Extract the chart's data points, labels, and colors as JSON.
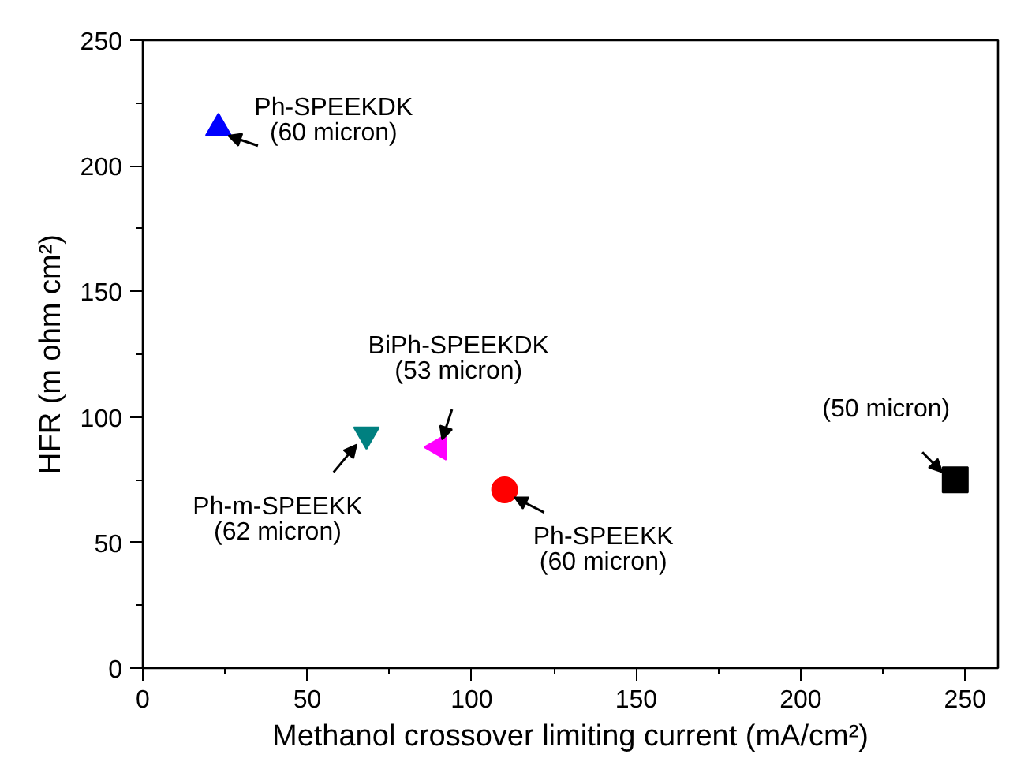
{
  "chart_data": {
    "type": "scatter",
    "xlabel": "Methanol crossover limiting current (mA/cm²)",
    "ylabel": "HFR (m ohm cm²)",
    "xlim": [
      0,
      260
    ],
    "ylim": [
      0,
      250
    ],
    "xticks": [
      0,
      50,
      100,
      150,
      200,
      250
    ],
    "yticks": [
      0,
      50,
      100,
      150,
      200,
      250
    ],
    "grid": false,
    "series": [
      {
        "color": "#0000ff",
        "marker": "triangle",
        "x": [
          23
        ],
        "values": [
          215
        ]
      },
      {
        "color": "#008080",
        "marker": "triangle-down",
        "x": [
          68
        ],
        "values": [
          93
        ]
      },
      {
        "color": "#ff00ff",
        "marker": "triangle-left",
        "x": [
          90
        ],
        "values": [
          88
        ]
      },
      {
        "color": "#ff0000",
        "marker": "circle",
        "x": [
          110
        ],
        "values": [
          71
        ]
      },
      {
        "color": "#000000",
        "marker": "square",
        "x": [
          247
        ],
        "values": [
          75
        ]
      }
    ],
    "annotations": [
      {
        "text": "Ph-SPEEKDK\n(60 micron)",
        "x": 23,
        "y": 215
      },
      {
        "text": "Ph-m-SPEEKK\n(62 micron)",
        "x": 68,
        "y": 93
      },
      {
        "text": "BiPh-SPEEKDK\n(53 micron)",
        "x": 90,
        "y": 88
      },
      {
        "text": "Ph-SPEEKK\n(60 micron)",
        "x": 110,
        "y": 71
      },
      {
        "text": "(50 micron)",
        "x": 247,
        "y": 75
      }
    ]
  }
}
